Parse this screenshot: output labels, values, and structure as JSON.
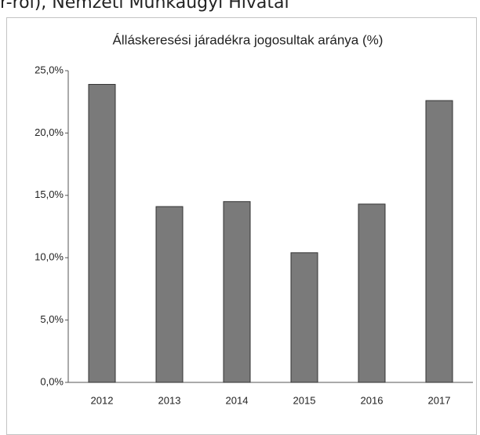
{
  "caption": "r-ról), Nemzeti Munkaügyi Hivatal",
  "chart_data": {
    "type": "bar",
    "title": "Álláskeresési járadékra jogosultak aránya (%)",
    "categories": [
      "2012",
      "2013",
      "2014",
      "2015",
      "2016",
      "2017"
    ],
    "values": [
      23.9,
      14.1,
      14.5,
      10.4,
      14.3,
      22.6
    ],
    "color": "#7a7a7a",
    "ylim": [
      0,
      25
    ],
    "yticks": [
      {
        "value": 0,
        "label": "0,0%"
      },
      {
        "value": 5,
        "label": "5,0%"
      },
      {
        "value": 10,
        "label": "10,0%"
      },
      {
        "value": 15,
        "label": "15,0%"
      },
      {
        "value": 20,
        "label": "20,0%"
      },
      {
        "value": 25,
        "label": "25,0%"
      }
    ],
    "grid": false
  }
}
